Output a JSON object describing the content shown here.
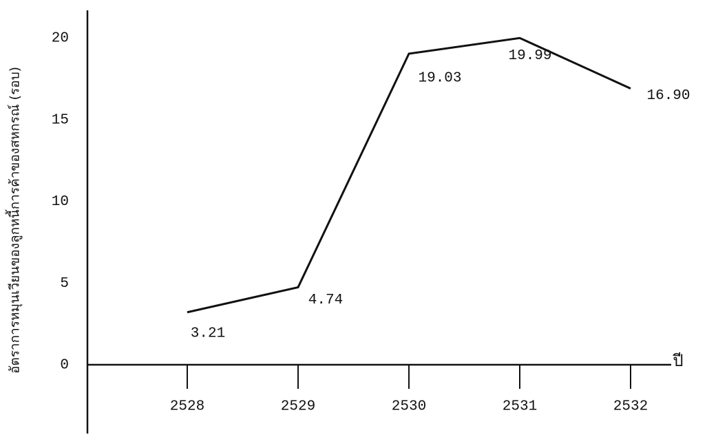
{
  "chart_data": {
    "type": "line",
    "y_label": "อัตราการหมุนเวียนของลูกหนี้การค้าของสหกรณ์ (รอบ)",
    "x_label": "ปี",
    "categories": [
      "2528",
      "2529",
      "2530",
      "2531",
      "2532"
    ],
    "values": [
      3.21,
      4.74,
      19.03,
      19.99,
      16.9
    ],
    "value_labels": [
      "3.21",
      "4.74",
      "19.03",
      "19.99",
      "16.90"
    ],
    "color": "#111111",
    "ylim": [
      0,
      20
    ],
    "yticks": [
      0,
      5,
      10,
      15,
      20
    ]
  }
}
